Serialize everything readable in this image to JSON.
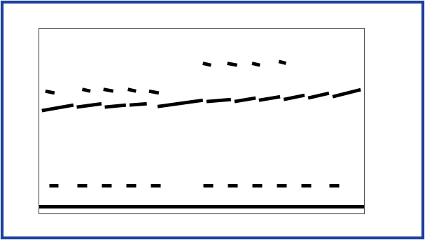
{
  "chart_data": {
    "type": "segments",
    "color": "#000000",
    "grid": false,
    "tick_labels": false,
    "xlim": [
      0,
      100
    ],
    "ylim": [
      0,
      100
    ],
    "xticks": [],
    "yticks": [],
    "segments": [
      {
        "x": [
          2.2,
          5
        ],
        "y": [
          66,
          65
        ]
      },
      {
        "x": [
          13.5,
          16
        ],
        "y": [
          67,
          66
        ]
      },
      {
        "x": [
          20,
          23
        ],
        "y": [
          67,
          66
        ]
      },
      {
        "x": [
          27.5,
          30
        ],
        "y": [
          67,
          66
        ]
      },
      {
        "x": [
          34,
          37
        ],
        "y": [
          66,
          65
        ]
      },
      {
        "x": [
          50.5,
          53
        ],
        "y": [
          81,
          80
        ]
      },
      {
        "x": [
          58,
          61
        ],
        "y": [
          81,
          80
        ]
      },
      {
        "x": [
          65.6,
          68
        ],
        "y": [
          81,
          80
        ]
      },
      {
        "x": [
          73.8,
          76
        ],
        "y": [
          82,
          81
        ]
      },
      {
        "x": [
          1.1,
          10.8
        ],
        "y": [
          55.5,
          58.5
        ]
      },
      {
        "x": [
          11.8,
          19.4
        ],
        "y": [
          57.4,
          59.2
        ]
      },
      {
        "x": [
          20.4,
          26.9
        ],
        "y": [
          57.4,
          58.5
        ]
      },
      {
        "x": [
          28,
          33.3
        ],
        "y": [
          58.5,
          59.2
        ]
      },
      {
        "x": [
          36.6,
          50.5
        ],
        "y": [
          57.7,
          61.1
        ]
      },
      {
        "x": [
          51.6,
          59.1
        ],
        "y": [
          60.4,
          61.5
        ]
      },
      {
        "x": [
          60.2,
          66.7
        ],
        "y": [
          60.4,
          62.3
        ]
      },
      {
        "x": [
          67.7,
          74.2
        ],
        "y": [
          61.1,
          63
        ]
      },
      {
        "x": [
          75.3,
          81.7
        ],
        "y": [
          61.5,
          63.8
        ]
      },
      {
        "x": [
          82.8,
          89.2
        ],
        "y": [
          62.3,
          64.9
        ]
      },
      {
        "x": [
          90.3,
          98.9
        ],
        "y": [
          63,
          66.8
        ]
      },
      {
        "x": [
          3.2,
          6.2
        ],
        "y": [
          15.1,
          15.1
        ]
      },
      {
        "x": [
          11.8,
          14.8
        ],
        "y": [
          15.1,
          15.1
        ]
      },
      {
        "x": [
          19.4,
          22.4
        ],
        "y": [
          15.1,
          15.1
        ]
      },
      {
        "x": [
          26.9,
          29.9
        ],
        "y": [
          15.1,
          15.1
        ]
      },
      {
        "x": [
          34.4,
          37.4
        ],
        "y": [
          15.1,
          15.1
        ]
      },
      {
        "x": [
          50.5,
          53.5
        ],
        "y": [
          15.1,
          15.1
        ]
      },
      {
        "x": [
          58,
          61
        ],
        "y": [
          15.1,
          15.1
        ]
      },
      {
        "x": [
          65.6,
          68.6
        ],
        "y": [
          15.1,
          15.1
        ]
      },
      {
        "x": [
          73.1,
          76.1
        ],
        "y": [
          15.1,
          15.1
        ]
      },
      {
        "x": [
          80.6,
          83.6
        ],
        "y": [
          15.1,
          15.1
        ]
      },
      {
        "x": [
          89.2,
          92.2
        ],
        "y": [
          15.1,
          15.1
        ]
      },
      {
        "x": [
          0,
          100
        ],
        "y": [
          3.8,
          3.8
        ]
      }
    ]
  }
}
